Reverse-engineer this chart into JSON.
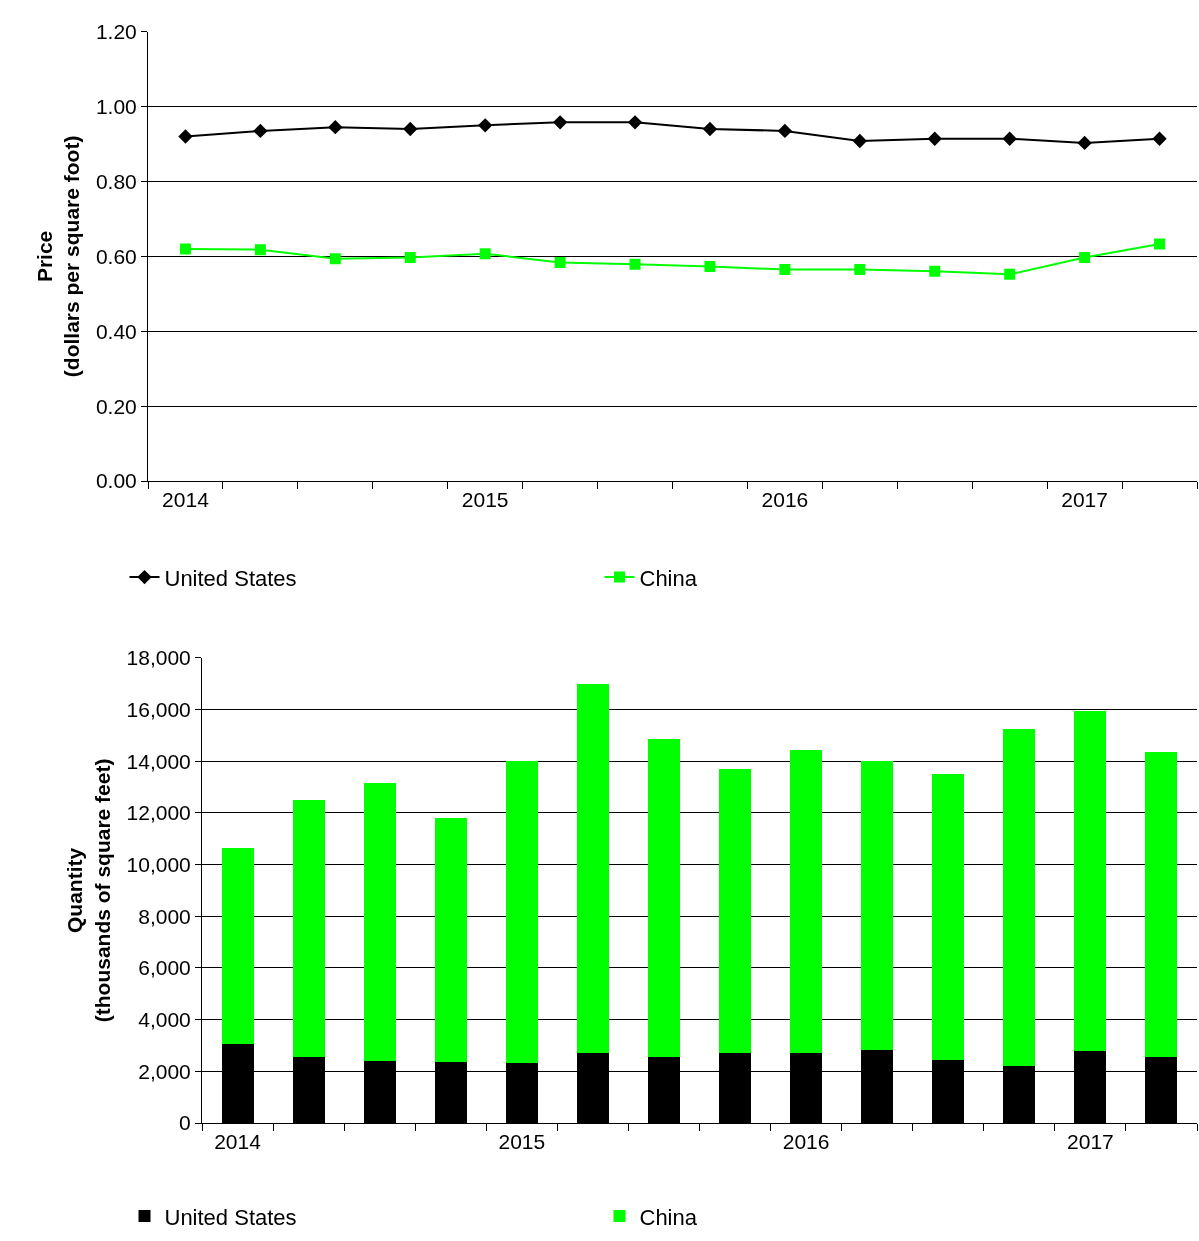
{
  "chart_data": [
    {
      "type": "line",
      "categories": [
        "2014",
        null,
        null,
        null,
        "2015",
        null,
        null,
        null,
        "2016",
        null,
        null,
        null,
        "2017",
        null
      ],
      "ylabel": "Price\n(dollars per square foot)",
      "ylim": [
        0,
        1.2
      ],
      "yticks": [
        {
          "value": 0,
          "label": "0.00"
        },
        {
          "value": 0.2,
          "label": "0.20"
        },
        {
          "value": 0.4,
          "label": "0.40"
        },
        {
          "value": 0.6,
          "label": "0.60"
        },
        {
          "value": 0.8,
          "label": "0.80"
        },
        {
          "value": 1.0,
          "label": "1.00"
        },
        {
          "value": 1.2,
          "label": "1.20"
        }
      ],
      "grid": "y",
      "legend": "bottom",
      "line_style": "solid",
      "series": [
        {
          "name": "United States",
          "color": "#000000",
          "marker": "diamond",
          "values": [
            0.92,
            0.935,
            0.945,
            0.94,
            0.95,
            0.958,
            0.958,
            0.94,
            0.935,
            0.908,
            0.914,
            0.914,
            0.903,
            0.914
          ]
        },
        {
          "name": "China",
          "color": "#00ff00",
          "marker": "square",
          "values": [
            0.62,
            0.618,
            0.594,
            0.597,
            0.607,
            0.584,
            0.579,
            0.573,
            0.565,
            0.565,
            0.56,
            0.552,
            0.597,
            0.633
          ]
        }
      ]
    },
    {
      "type": "bar",
      "stacked": true,
      "categories": [
        "2014",
        null,
        null,
        null,
        "2015",
        null,
        null,
        null,
        "2016",
        null,
        null,
        null,
        "2017",
        null
      ],
      "ylabel": "Quantity\n(thousands of square feet)",
      "ylim": [
        0,
        18000
      ],
      "yticks": [
        {
          "value": 0,
          "label": "0"
        },
        {
          "value": 2000,
          "label": "2,000"
        },
        {
          "value": 4000,
          "label": "4,000"
        },
        {
          "value": 6000,
          "label": "6,000"
        },
        {
          "value": 8000,
          "label": "8,000"
        },
        {
          "value": 10000,
          "label": "10,000"
        },
        {
          "value": 12000,
          "label": "12,000"
        },
        {
          "value": 14000,
          "label": "14,000"
        },
        {
          "value": 16000,
          "label": "16,000"
        },
        {
          "value": 18000,
          "label": "18,000"
        }
      ],
      "grid": "y",
      "legend": "bottom",
      "series": [
        {
          "name": "United States",
          "color": "#000000",
          "values": [
            3050,
            2540,
            2390,
            2350,
            2310,
            2700,
            2540,
            2700,
            2700,
            2830,
            2450,
            2200,
            2770,
            2540
          ]
        },
        {
          "name": "China",
          "color": "#00ff00",
          "values": [
            7600,
            9960,
            10760,
            9450,
            11690,
            14300,
            12310,
            11000,
            11750,
            11170,
            11050,
            13050,
            13180,
            11810
          ]
        }
      ]
    }
  ]
}
